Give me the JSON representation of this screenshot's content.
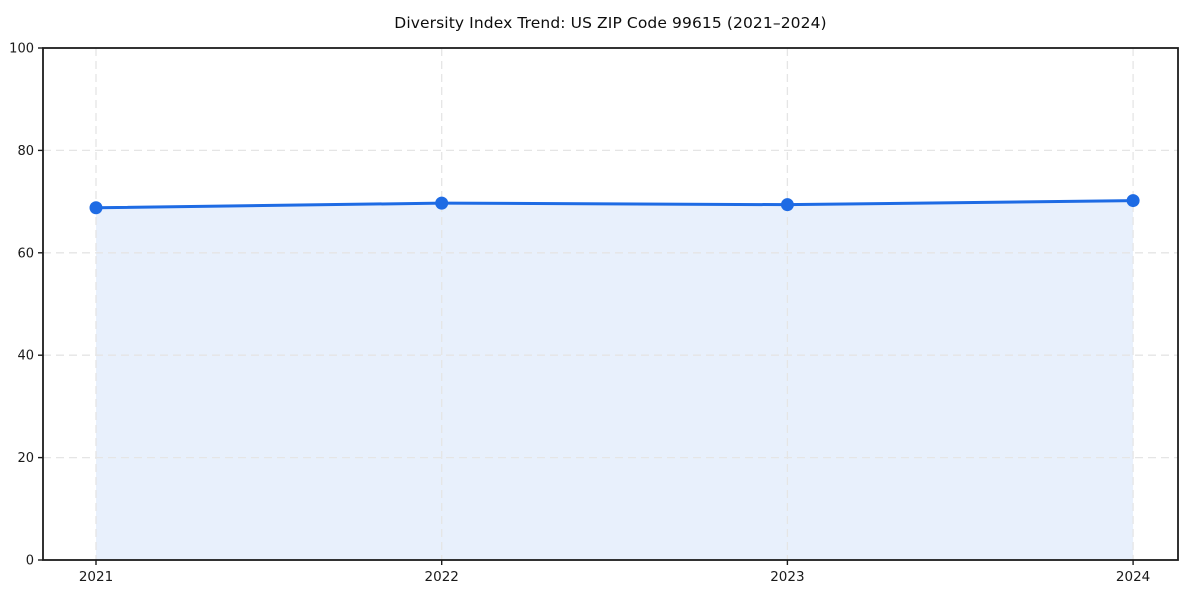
{
  "chart_data": {
    "type": "line",
    "subtype": "area-filled line chart with circular markers",
    "title": "Diversity Index Trend: US ZIP Code 99615 (2021–2024)",
    "categories": [
      "2021",
      "2022",
      "2023",
      "2024"
    ],
    "series": [
      {
        "name": "Diversity Index",
        "values": [
          68.8,
          69.7,
          69.4,
          70.2
        ]
      }
    ],
    "xlabel": "",
    "ylabel": "",
    "ylim": [
      0,
      100
    ],
    "yticks": [
      0,
      20,
      40,
      60,
      80,
      100
    ],
    "grid": {
      "visible": true,
      "style": "dashed",
      "axes": "both"
    },
    "legend": {
      "visible": false
    },
    "area_fill": {
      "enabled": true,
      "baseline": 0
    },
    "colors": {
      "line": "#1e6be4",
      "marker": "#1e6be4",
      "fill": "#e8f0fc",
      "grid": "#e5e5e5",
      "spine": "#1c1c1c",
      "text": "#1a1a1a",
      "background": "#ffffff"
    }
  }
}
